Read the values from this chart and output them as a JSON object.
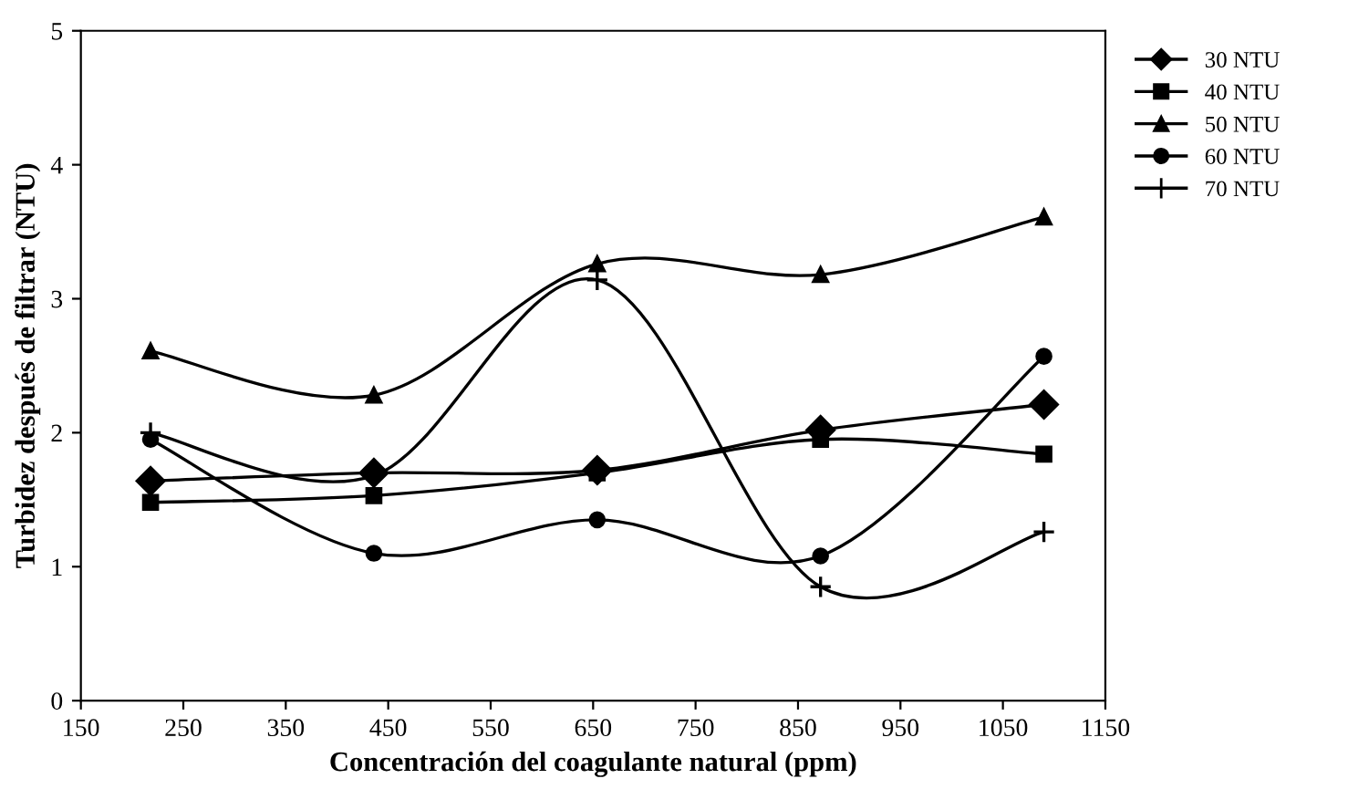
{
  "chart_data": {
    "type": "line",
    "xlabel": "Concentración del coagulante natural (ppm)",
    "ylabel": "Turbidez después de filtrar (NTU)",
    "x": [
      218,
      436,
      654,
      872,
      1090
    ],
    "series": [
      {
        "name": "30 NTU",
        "color": "#000000",
        "marker": "diamond",
        "values": [
          1.64,
          1.7,
          1.72,
          2.02,
          2.21
        ]
      },
      {
        "name": "40 NTU",
        "color": "#000000",
        "marker": "square",
        "values": [
          1.48,
          1.53,
          1.7,
          1.95,
          1.84
        ]
      },
      {
        "name": "50 NTU",
        "color": "#000000",
        "marker": "triangle",
        "values": [
          2.61,
          2.28,
          3.26,
          3.18,
          3.61
        ]
      },
      {
        "name": "60 NTU",
        "color": "#000000",
        "marker": "circle",
        "values": [
          1.95,
          1.1,
          1.35,
          1.08,
          2.57
        ]
      },
      {
        "name": "70 NTU",
        "color": "#000000",
        "marker": "cross",
        "values": [
          2.0,
          1.68,
          3.14,
          0.85,
          1.26
        ]
      }
    ],
    "xlim": [
      150,
      1150
    ],
    "xticks": [
      150,
      250,
      350,
      450,
      550,
      650,
      750,
      850,
      950,
      1050,
      1150
    ],
    "ylim": [
      0,
      5
    ],
    "yticks": [
      0,
      1,
      2,
      3,
      4,
      5
    ],
    "grid": false,
    "legend": "right",
    "line_style": "solid"
  }
}
